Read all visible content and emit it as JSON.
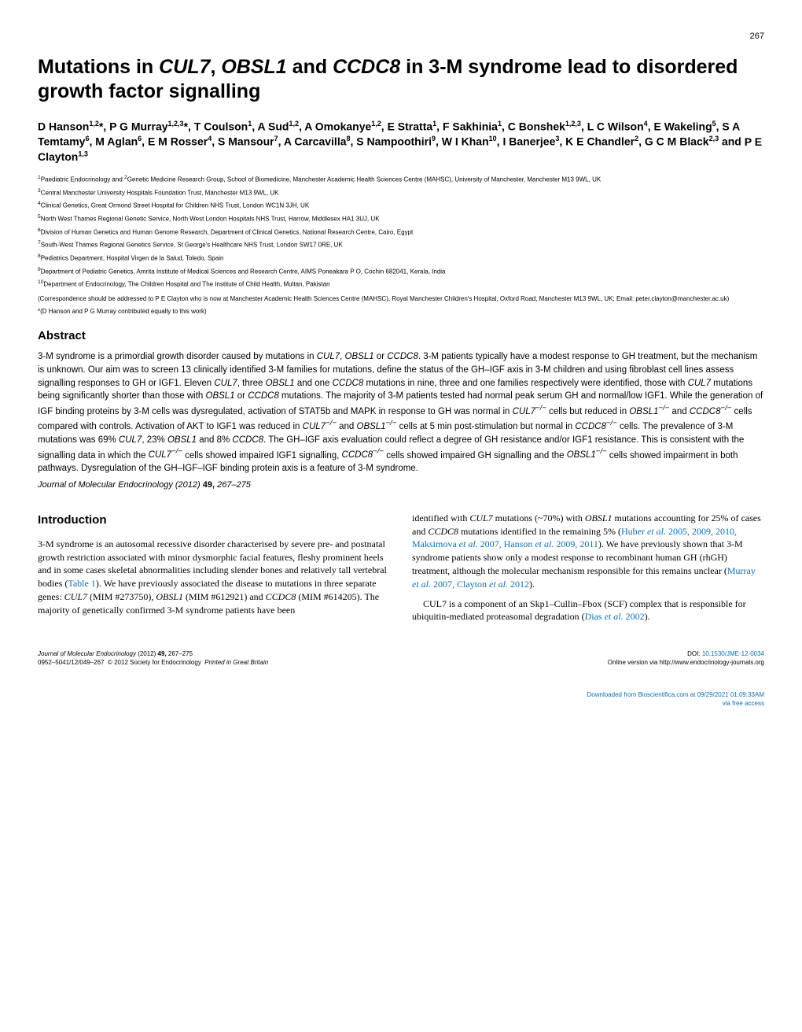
{
  "page_number": "267",
  "title_html": "Mutations in <span class='gene'>CUL7</span>, <span class='gene'>OBSL1</span> and <span class='gene'>CCDC8</span> in 3-M syndrome lead to disordered growth factor signalling",
  "authors_html": "D Hanson<sup>1,2</sup>*, P G Murray<sup>1,2,3</sup>*, T Coulson<sup>1</sup>, A Sud<sup>1,2</sup>, A Omokanye<sup>1,2</sup>, E Stratta<sup>1</sup>, F Sakhinia<sup>1</sup>, C Bonshek<sup>1,2,3</sup>, L C Wilson<sup>4</sup>, E Wakeling<sup>5</sup>, S A Temtamy<sup>6</sup>, M Aglan<sup>6</sup>, E M Rosser<sup>4</sup>, S Mansour<sup>7</sup>, A Carcavilla<sup>8</sup>, S Nampoothiri<sup>9</sup>, W I Khan<sup>10</sup>, I Banerjee<sup>3</sup>, K E Chandler<sup>2</sup>, G C M Black<sup>2,3</sup> and <b>P E Clayton<sup>1,3</sup></b>",
  "affiliations": [
    "<sup>1</sup>Paediatric Endocrinology and <sup>2</sup>Genetic Medicine Research Group, School of Biomedicine, Manchester Academic Health Sciences Centre (MAHSC), University of Manchester, Manchester M13 9WL, UK",
    "<sup>3</sup>Central Manchester University Hospitals Foundation Trust, Manchester M13 9WL, UK",
    "<sup>4</sup>Clinical Genetics, Great Ormond Street Hospital for Children NHS Trust, London WC1N 3JH, UK",
    "<sup>5</sup>North West Thames Regional Genetic Service, North West London Hospitals NHS Trust, Harrow, Middlesex HA1 3UJ, UK",
    "<sup>6</sup>Division of Human Genetics and Human Genome Research, Department of Clinical Genetics, National Research Centre, Cairo, Egypt",
    "<sup>7</sup>South-West Thames Regional Genetics Service, St George's Healthcare NHS Trust, London SW17 0RE, UK",
    "<sup>8</sup>Pediatrics Department, Hospital Virgen de la Salud, Toledo, Spain",
    "<sup>9</sup>Department of Pediatric Genetics, Amrita Institute of Medical Sciences and Research Centre, AIMS Poneakara P O, Cochin 682041, Kerala, India",
    "<sup>10</sup>Department of Endocrinology, The Children Hospital and The Institute of Child Health, Multan, Pakistan"
  ],
  "correspondence": "(Correspondence should be addressed to P E Clayton who is now at Manchester Academic Health Sciences Centre (MAHSC), Royal Manchester Children's Hospital, Oxford Road, Manchester M13 9WL, UK; Email: peter.clayton@manchester.ac.uk)",
  "equal_contrib": "*(D Hanson and P G Murray contributed equally to this work)",
  "abstract_heading": "Abstract",
  "abstract_html": "3-M syndrome is a primordial growth disorder caused by mutations in <span class='gene'>CUL7</span>, <span class='gene'>OBSL1</span> or <span class='gene'>CCDC8</span>. 3-M patients typically have a modest response to GH treatment, but the mechanism is unknown. Our aim was to screen 13 clinically identified 3-M families for mutations, define the status of the GH–IGF axis in 3-M children and using fibroblast cell lines assess signalling responses to GH or IGF1. Eleven <span class='gene'>CUL7</span>, three <span class='gene'>OBSL1</span> and one <span class='gene'>CCDC8</span> mutations in nine, three and one families respectively were identified, those with <span class='gene'>CUL7</span> mutations being significantly shorter than those with <span class='gene'>OBSL1</span> or <span class='gene'>CCDC8</span> mutations. The majority of 3-M patients tested had normal peak serum GH and normal/low IGF1. While the generation of IGF binding proteins by 3-M cells was dysregulated, activation of STAT5b and MAPK in response to GH was normal in <span class='gene'>CUL7<sup>−/−</sup></span> cells but reduced in <span class='gene'>OBSL1<sup>−/−</sup></span> and <span class='gene'>CCDC8<sup>−/−</sup></span> cells compared with controls. Activation of AKT to IGF1 was reduced in <span class='gene'>CUL7<sup>−/−</sup></span> and <span class='gene'>OBSL1<sup>−/−</sup></span> cells at 5 min post-stimulation but normal in <span class='gene'>CCDC8<sup>−/−</sup></span> cells. The prevalence of 3-M mutations was 69% <span class='gene'>CUL7</span>, 23% <span class='gene'>OBSL1</span> and 8% <span class='gene'>CCDC8</span>. The GH–IGF axis evaluation could reflect a degree of GH resistance and/or IGF1 resistance. This is consistent with the signalling data in which the <span class='gene'>CUL7<sup>−/−</sup></span> cells showed impaired IGF1 signalling, <span class='gene'>CCDC8<sup>−/−</sup></span> cells showed impaired GH signalling and the <span class='gene'>OBSL1<sup>−/−</sup></span> cells showed impairment in both pathways. Dysregulation of the GH–IGF–IGF binding protein axis is a feature of 3-M syndrome.",
  "journal_line_html": "<i>Journal of Molecular Endocrinology</i> (2012) <span class='volume'>49,</span> 267–275",
  "intro_heading": "Introduction",
  "intro_col1_html": "<div class='para'>3-M syndrome is an autosomal recessive disorder characterised by severe pre- and postnatal growth restriction associated with minor dysmorphic facial features, fleshy prominent heels and in some cases skeletal abnormalities including slender bones and relatively tall vertebral bodies (<span class='ref'>Table 1</span>). We have previously associated the disease to mutations in three separate genes: <span class='gene'>CUL7</span> (MIM #273750), <span class='gene'>OBSL1</span> (MIM #612921) and <span class='gene'>CCDC8</span> (MIM #614205). The majority of genetically confirmed 3-M syndrome patients have been</div>",
  "intro_col2_html": "<div class='para'>identified with <span class='gene'>CUL7</span> mutations (~70%) with <span class='gene'>OBSL1</span> mutations accounting for 25% of cases and <span class='gene'>CCDC8</span> mutations identified in the remaining 5% (<span class='ref'>Huber <span class='etal'>et al.</span> 2005, 2009, 2010, Maksimova <span class='etal'>et al.</span> 2007, Hanson <span class='etal'>et al.</span> 2009, 2011</span>). We have previously shown that 3-M syndrome patients show only a modest response to recombinant human GH (rhGH) treatment, although the molecular mechanism responsible for this remains unclear (<span class='ref'>Murray <span class='etal'>et al.</span> 2007, Clayton <span class='etal'>et al.</span> 2012</span>).</div><div class='para indent'>CUL7 is a component of an Skp1–Cullin–Fbox (SCF) complex that is responsible for ubiquitin-mediated proteasomal degradation (<span class='ref'>Dias <span class='etal'>et al.</span> 2002</span>).</div>",
  "footer_left_html": "<i>Journal of Molecular Endocrinology</i> (2012) <b>49,</b> 267–275<br>0952–5041/12/049–267&nbsp;&nbsp;© 2012 Society for Endocrinology&nbsp;&nbsp;<i>Printed in Great Britain</i>",
  "footer_right_html": "DOI: <span class='doi-link'>10.1530/JME-12-0034</span><br>Online version via http://www.endocrinology-journals.org",
  "download_footer_html": "Downloaded from Bioscientifica.com at 09/29/2021 01:09:33AM<br>via free access",
  "colors": {
    "text": "#000000",
    "link": "#0b6eb5",
    "background": "#ffffff"
  },
  "typography": {
    "title_fontsize": 25,
    "authors_fontsize": 14,
    "affil_fontsize": 8,
    "abstract_fontsize": 11.5,
    "body_fontsize": 12,
    "footer_fontsize": 8,
    "font_sans": "Arial, Helvetica, sans-serif",
    "font_serif": "New Century Schoolbook, Georgia, serif"
  }
}
